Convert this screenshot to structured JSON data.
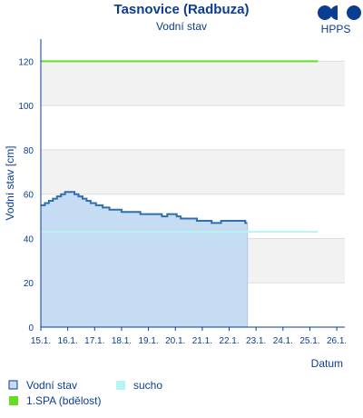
{
  "chart_data": {
    "type": "line",
    "title": "Tasnovice (Radbuza)",
    "subtitle": "Vodní stav",
    "xlabel": "Datum",
    "ylabel": "Vodní stav [cm]",
    "ylim": [
      0,
      130
    ],
    "yticks": [
      0,
      20,
      40,
      60,
      80,
      100,
      120
    ],
    "xlim": [
      0,
      11.3
    ],
    "x_categories": [
      "15.1.",
      "16.1.",
      "17.1.",
      "18.1.",
      "19.1.",
      "20.1.",
      "21.1.",
      "22.1.",
      "23.1.",
      "24.1.",
      "25.1.",
      "26.1."
    ],
    "grid": true,
    "series": [
      {
        "name": "Vodní stav",
        "color": "#2f6fad",
        "fill": "#c5dcf2",
        "points": [
          [
            0.0,
            55
          ],
          [
            0.15,
            56
          ],
          [
            0.3,
            57
          ],
          [
            0.45,
            58
          ],
          [
            0.6,
            59
          ],
          [
            0.75,
            60
          ],
          [
            0.9,
            61
          ],
          [
            1.1,
            61
          ],
          [
            1.25,
            60
          ],
          [
            1.4,
            59
          ],
          [
            1.55,
            58
          ],
          [
            1.7,
            57
          ],
          [
            1.85,
            56
          ],
          [
            2.05,
            55
          ],
          [
            2.3,
            54
          ],
          [
            2.55,
            53
          ],
          [
            3.0,
            52
          ],
          [
            3.5,
            52
          ],
          [
            3.7,
            51
          ],
          [
            4.2,
            51
          ],
          [
            4.5,
            50
          ],
          [
            4.7,
            51
          ],
          [
            4.9,
            51
          ],
          [
            5.05,
            50
          ],
          [
            5.2,
            49
          ],
          [
            5.5,
            49
          ],
          [
            5.8,
            48
          ],
          [
            6.1,
            48
          ],
          [
            6.35,
            47
          ],
          [
            6.7,
            48
          ],
          [
            7.4,
            48
          ],
          [
            7.6,
            47
          ],
          [
            7.68,
            47
          ]
        ]
      }
    ],
    "thresholds": [
      {
        "name": "suchо",
        "value": 43,
        "color": "#b6f4f4",
        "x_start": 0.0,
        "x_end": 10.3
      },
      {
        "name": "1.SPA (bdělost)",
        "value": 120,
        "color": "#66dd22",
        "x_start": 0.0,
        "x_end": 10.3
      }
    ],
    "legend": [
      {
        "label": "Vodní stav",
        "swatch": "box",
        "color": "#c5dcf2",
        "border": "#0b3d91"
      },
      {
        "label": "sucho",
        "swatch": "fill",
        "color": "#b6f4f4"
      },
      {
        "label": "1.SPA (bdělost)",
        "swatch": "fill",
        "color": "#66dd22"
      }
    ]
  },
  "logo": {
    "text": "HPPS",
    "color": "#0b3d91"
  }
}
